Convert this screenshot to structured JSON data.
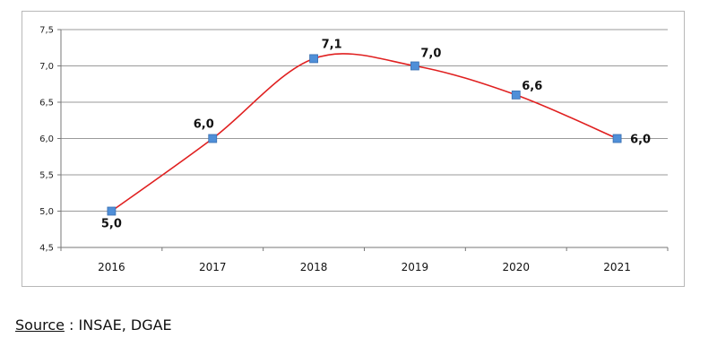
{
  "chart_data": {
    "type": "line",
    "categories": [
      "2016",
      "2017",
      "2018",
      "2019",
      "2020",
      "2021"
    ],
    "values": [
      5.0,
      6.0,
      7.1,
      7.0,
      6.6,
      6.0
    ],
    "data_labels": [
      "5,0",
      "6,0",
      "7,1",
      "7,0",
      "6,6",
      "6,0"
    ],
    "y_ticks": [
      4.5,
      5.0,
      5.5,
      6.0,
      6.5,
      7.0,
      7.5
    ],
    "y_tick_labels": [
      "4,5",
      "5,0",
      "5,5",
      "6,0",
      "6,5",
      "7,0",
      "7,5"
    ],
    "ylim": [
      4.5,
      7.5
    ],
    "grid": true,
    "smooth": true,
    "line_color": "#e02020",
    "marker_color": "#4f8fd8",
    "title": "",
    "xlabel": "",
    "ylabel": ""
  },
  "source": {
    "label": "Source",
    "text": " : INSAE, DGAE"
  }
}
